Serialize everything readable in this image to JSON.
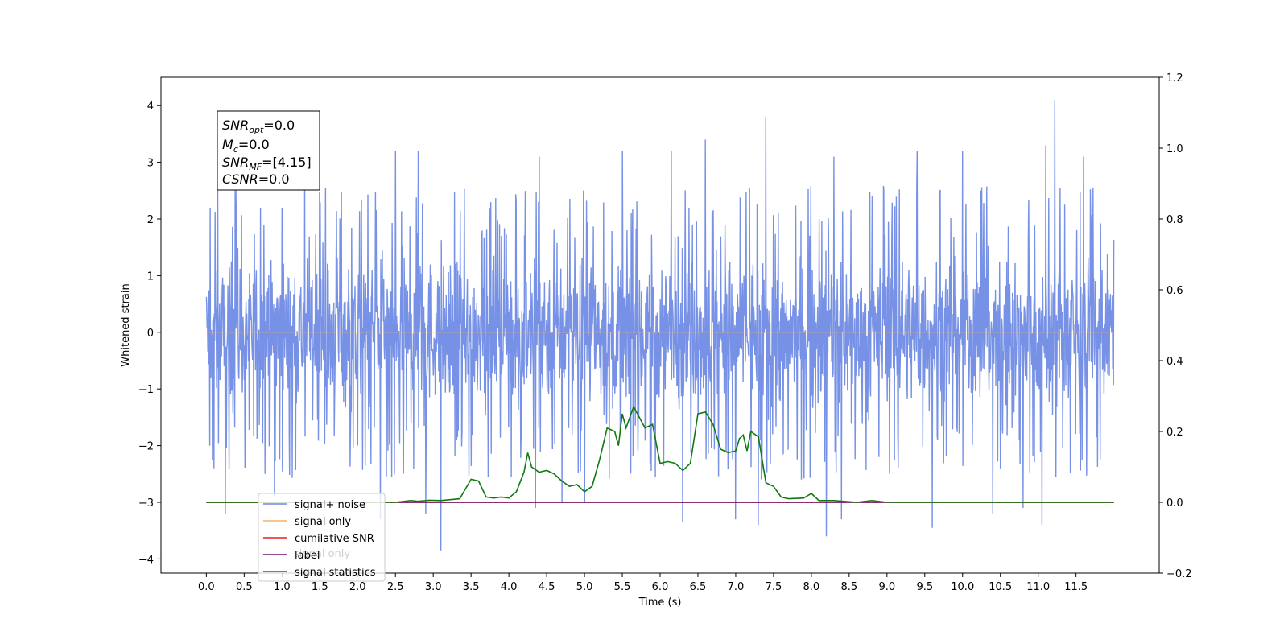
{
  "chart_data": {
    "type": "line",
    "xlabel": "Time (s)",
    "ylabel": "Whitened strain",
    "xlim": [
      -0.6,
      12.6
    ],
    "ylim": [
      -4.25,
      4.5
    ],
    "ylim_right": [
      -0.2,
      1.2
    ],
    "x_ticks": [
      0.0,
      0.5,
      1.0,
      1.5,
      2.0,
      2.5,
      3.0,
      3.5,
      4.0,
      4.5,
      5.0,
      5.5,
      6.0,
      6.5,
      7.0,
      7.5,
      8.0,
      8.5,
      9.0,
      9.5,
      10.0,
      10.5,
      11.0,
      11.5
    ],
    "x_tick_labels": [
      "0.0",
      "0.5",
      "1.0",
      "1.5",
      "2.0",
      "2.5",
      "3.0",
      "3.5",
      "4.0",
      "4.5",
      "5.0",
      "5.5",
      "6.0",
      "6.5",
      "7.0",
      "7.5",
      "8.0",
      "8.5",
      "9.0",
      "9.5",
      "10.0",
      "10.5",
      "11.0",
      "11.5"
    ],
    "y_ticks": [
      4,
      3,
      2,
      1,
      0,
      -1,
      -2,
      -3,
      -4
    ],
    "y_tick_labels": [
      "4",
      "3",
      "2",
      "1",
      "0",
      "−1",
      "−2",
      "−3",
      "−4"
    ],
    "y_right_ticks": [
      1.2,
      1.0,
      0.8,
      0.6,
      0.4,
      0.2,
      0.0,
      -0.2
    ],
    "y_right_tick_labels": [
      "1.2",
      "1.0",
      "0.8",
      "0.6",
      "0.4",
      "0.2",
      "0.0",
      "−0.2"
    ],
    "grid": false,
    "legend_position": "lower-left",
    "series": [
      {
        "name": "signal+ noise",
        "color": "#6a88e3",
        "axis": "left",
        "style": "noise",
        "x_range": [
          0.0,
          12.0
        ],
        "typical_range": [
          -1.6,
          1.6
        ],
        "peaks_up": [
          [
            0.05,
            2.2
          ],
          [
            0.15,
            2.5
          ],
          [
            0.4,
            2.9
          ],
          [
            1.3,
            2.9
          ],
          [
            2.5,
            3.2
          ],
          [
            2.8,
            3.2
          ],
          [
            4.4,
            3.1
          ],
          [
            5.5,
            3.2
          ],
          [
            6.15,
            3.2
          ],
          [
            6.6,
            3.4
          ],
          [
            7.4,
            3.8
          ],
          [
            8.3,
            3.1
          ],
          [
            9.4,
            3.2
          ],
          [
            10.0,
            3.2
          ],
          [
            11.1,
            3.3
          ],
          [
            11.22,
            4.1
          ],
          [
            11.6,
            3.1
          ]
        ],
        "peaks_down": [
          [
            0.1,
            -2.4
          ],
          [
            0.25,
            -3.2
          ],
          [
            0.9,
            -2.9
          ],
          [
            2.3,
            -3.3
          ],
          [
            2.9,
            -3.2
          ],
          [
            3.1,
            -3.85
          ],
          [
            4.35,
            -3.1
          ],
          [
            4.7,
            -3.0
          ],
          [
            5.0,
            -3.0
          ],
          [
            6.3,
            -3.35
          ],
          [
            7.0,
            -3.3
          ],
          [
            7.3,
            -3.4
          ],
          [
            8.2,
            -3.6
          ],
          [
            8.4,
            -3.3
          ],
          [
            9.6,
            -3.45
          ],
          [
            10.4,
            -3.2
          ],
          [
            10.8,
            -3.1
          ],
          [
            11.05,
            -3.4
          ]
        ]
      },
      {
        "name": "signal only",
        "color": "#f5b16a",
        "axis": "left",
        "x": [
          0.0,
          12.0
        ],
        "y": [
          0.0,
          0.0
        ]
      },
      {
        "name": "cumilative SNR",
        "color": "#e8201c",
        "axis": "right",
        "x": [
          0.0,
          12.0
        ],
        "y": [
          0.0,
          0.0
        ]
      },
      {
        "name": "label",
        "color": "#6a0f6a",
        "axis": "right",
        "x": [
          0.0,
          12.0
        ],
        "y": [
          0.0,
          0.0
        ]
      },
      {
        "name": "signal statistics",
        "color": "#107a10",
        "axis": "right",
        "x": [
          0.0,
          2.5,
          2.7,
          2.8,
          2.95,
          3.1,
          3.35,
          3.5,
          3.6,
          3.7,
          3.8,
          3.9,
          4.0,
          4.1,
          4.2,
          4.25,
          4.3,
          4.4,
          4.5,
          4.6,
          4.7,
          4.8,
          4.9,
          5.0,
          5.1,
          5.2,
          5.3,
          5.4,
          5.45,
          5.5,
          5.55,
          5.6,
          5.65,
          5.7,
          5.8,
          5.9,
          6.0,
          6.1,
          6.2,
          6.3,
          6.4,
          6.5,
          6.6,
          6.7,
          6.8,
          6.9,
          7.0,
          7.05,
          7.1,
          7.15,
          7.2,
          7.3,
          7.35,
          7.4,
          7.5,
          7.6,
          7.7,
          7.9,
          8.0,
          8.1,
          8.3,
          8.6,
          8.8,
          9.0,
          12.0
        ],
        "y": [
          0.0,
          0.0,
          0.005,
          0.003,
          0.006,
          0.005,
          0.01,
          0.065,
          0.06,
          0.015,
          0.012,
          0.015,
          0.012,
          0.03,
          0.085,
          0.14,
          0.1,
          0.085,
          0.09,
          0.08,
          0.06,
          0.045,
          0.05,
          0.03,
          0.045,
          0.12,
          0.21,
          0.2,
          0.16,
          0.25,
          0.21,
          0.24,
          0.27,
          0.25,
          0.21,
          0.22,
          0.11,
          0.115,
          0.11,
          0.09,
          0.11,
          0.25,
          0.255,
          0.22,
          0.15,
          0.14,
          0.145,
          0.18,
          0.19,
          0.145,
          0.2,
          0.185,
          0.12,
          0.055,
          0.045,
          0.015,
          0.01,
          0.012,
          0.025,
          0.005,
          0.005,
          0.0,
          0.005,
          0.0,
          0.0
        ]
      }
    ],
    "annotation": {
      "lines": [
        {
          "base": "SNR",
          "sub": "opt",
          "value": "=0.0"
        },
        {
          "base": "M",
          "sub": "c",
          "value": "=0.0"
        },
        {
          "base": "SNR",
          "sub": "MF",
          "value": "=[4.15]"
        },
        {
          "base": "CSNR",
          "sub": "",
          "value": "=0.0"
        }
      ]
    },
    "legend_overlap_text": "signal only"
  }
}
